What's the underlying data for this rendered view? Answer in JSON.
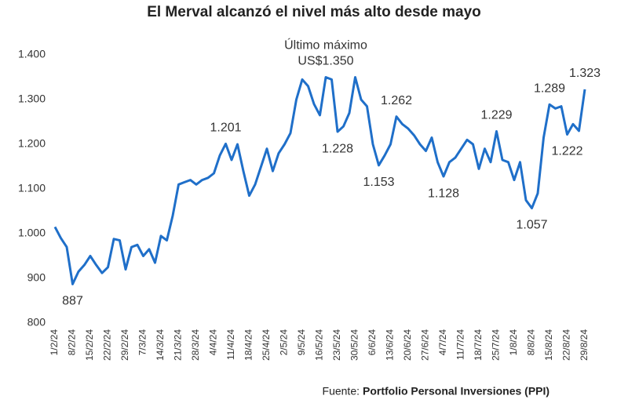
{
  "chart_data": {
    "type": "line",
    "title": "El Merval alcanzó el nivel más alto desde mayo",
    "annotation": "Último máximo",
    "footnote": {
      "label": "Fuente:",
      "text": "Portfolio Personal Inversiones (PPI)"
    },
    "categories": [
      "1/2/24",
      null,
      null,
      "8/2/24",
      null,
      null,
      "15/2/24",
      null,
      null,
      "22/2/24",
      null,
      null,
      "29/2/24",
      null,
      null,
      "7/3/24",
      null,
      null,
      "14/3/24",
      null,
      null,
      "21/3/24",
      null,
      null,
      "28/3/24",
      null,
      null,
      "4/4/24",
      null,
      null,
      "11/4/24",
      null,
      null,
      "18/4/24",
      null,
      null,
      "25/4/24",
      null,
      null,
      "2/5/24",
      null,
      null,
      "9/5/24",
      null,
      null,
      "16/5/24",
      null,
      null,
      "23/5/24",
      null,
      null,
      "30/5/24",
      null,
      null,
      "6/6/24",
      null,
      null,
      "13/6/24",
      null,
      null,
      "20/6/24",
      null,
      null,
      "27/6/24",
      null,
      null,
      "4/7/24",
      null,
      null,
      "11/7/24",
      null,
      null,
      "18/7/24",
      null,
      null,
      "25/7/24",
      null,
      null,
      "1/8/24",
      null,
      null,
      "8/8/24",
      null,
      null,
      "15/8/24",
      null,
      null,
      "22/8/24",
      null,
      null,
      "29/8/24"
    ],
    "series": [
      {
        "name": "Merval",
        "color": "#1f6fc9",
        "values": [
          1015,
          990,
          970,
          887,
          915,
          930,
          950,
          930,
          912,
          925,
          988,
          985,
          920,
          970,
          975,
          950,
          965,
          935,
          995,
          985,
          1040,
          1110,
          1115,
          1120,
          1110,
          1120,
          1125,
          1135,
          1175,
          1201,
          1165,
          1200,
          1140,
          1085,
          1110,
          1150,
          1190,
          1140,
          1180,
          1200,
          1225,
          1300,
          1345,
          1330,
          1290,
          1265,
          1350,
          1345,
          1228,
          1240,
          1270,
          1350,
          1300,
          1285,
          1200,
          1153,
          1175,
          1200,
          1262,
          1245,
          1235,
          1220,
          1200,
          1185,
          1215,
          1160,
          1128,
          1160,
          1170,
          1190,
          1210,
          1200,
          1145,
          1190,
          1160,
          1229,
          1165,
          1160,
          1120,
          1160,
          1075,
          1057,
          1090,
          1215,
          1289,
          1280,
          1285,
          1222,
          1245,
          1230,
          1323
        ],
        "value_labels": [
          null,
          null,
          null,
          "887",
          null,
          null,
          null,
          null,
          null,
          null,
          null,
          null,
          null,
          null,
          null,
          null,
          null,
          null,
          null,
          null,
          null,
          null,
          null,
          null,
          null,
          null,
          null,
          null,
          null,
          "1.201",
          null,
          null,
          null,
          null,
          null,
          null,
          null,
          null,
          null,
          null,
          null,
          null,
          null,
          null,
          null,
          null,
          "US$1.350",
          null,
          "1.228",
          null,
          null,
          null,
          null,
          null,
          null,
          "1.153",
          null,
          null,
          "1.262",
          null,
          null,
          null,
          null,
          null,
          null,
          null,
          "1.128",
          null,
          null,
          null,
          null,
          null,
          null,
          null,
          null,
          "1.229",
          null,
          null,
          null,
          null,
          null,
          "1.057",
          null,
          null,
          "1.289",
          null,
          null,
          "1.222",
          null,
          null,
          "1.323"
        ]
      }
    ],
    "ylim": [
      800,
      1400
    ],
    "yticks": [
      800,
      900,
      {
        "value": 1000,
        "label": "1.000"
      },
      {
        "value": 1100,
        "label": "1.100"
      },
      {
        "value": 1200,
        "label": "1.200"
      },
      {
        "value": 1300,
        "label": "1.300"
      },
      {
        "value": 1400,
        "label": "1.400"
      }
    ],
    "grid": false
  }
}
